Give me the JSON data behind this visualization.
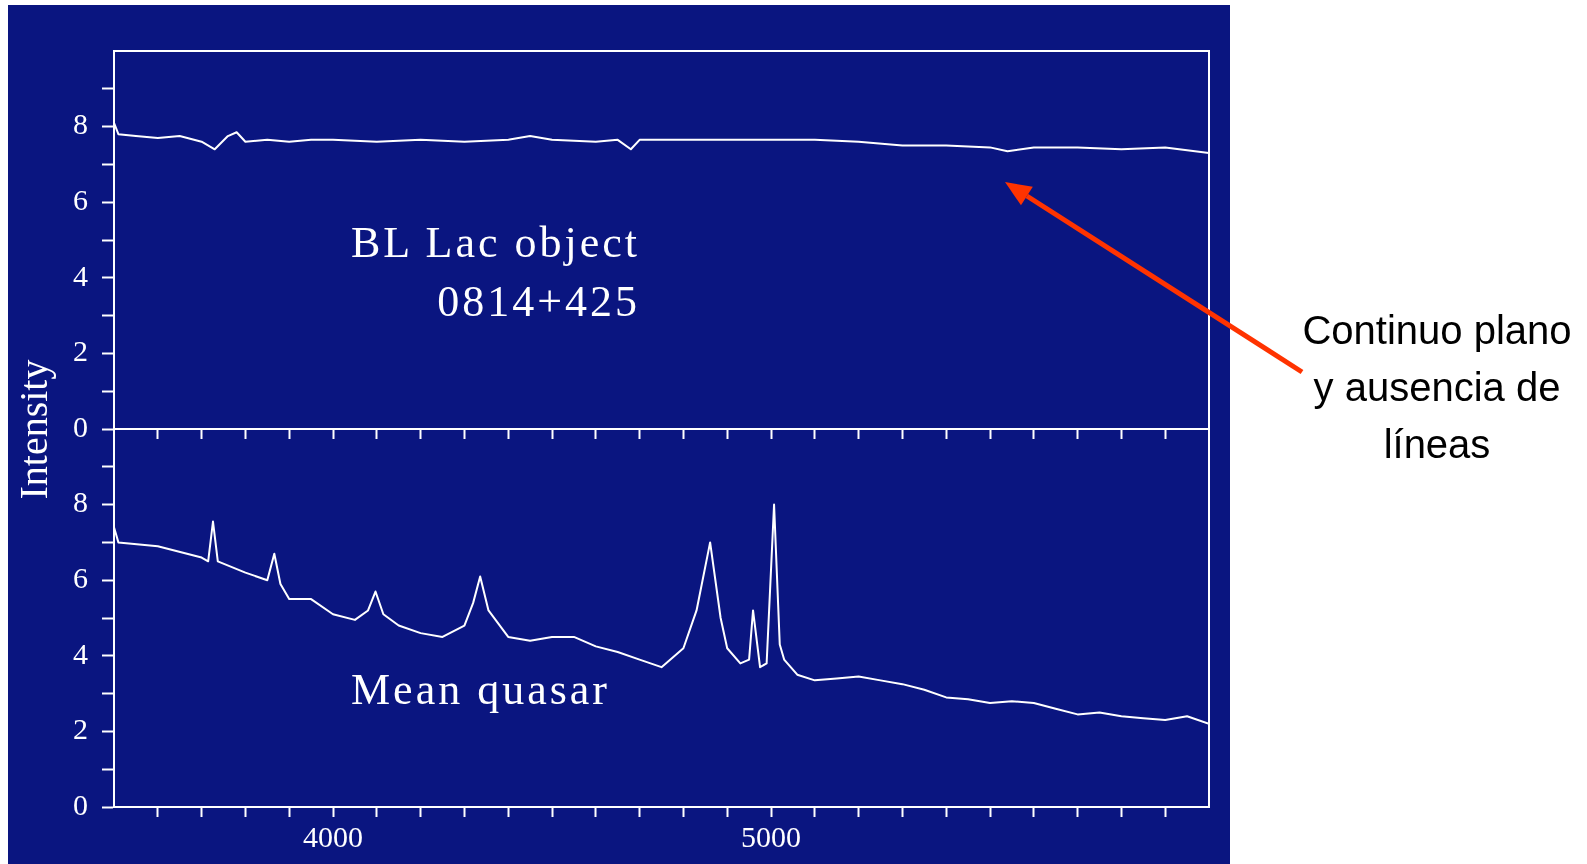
{
  "chart_data": [
    {
      "type": "line",
      "ylabel": "Intensity",
      "xlim": [
        3500,
        6000
      ],
      "ylim": [
        0,
        10
      ],
      "xticks": [
        {
          "value": 3600,
          "label": null
        },
        {
          "value": 3700,
          "label": null
        },
        {
          "value": 3800,
          "label": null
        },
        {
          "value": 3900,
          "label": null
        },
        {
          "value": 4000,
          "label": null
        },
        {
          "value": 4100,
          "label": null
        },
        {
          "value": 4200,
          "label": null
        },
        {
          "value": 4300,
          "label": null
        },
        {
          "value": 4400,
          "label": null
        },
        {
          "value": 4500,
          "label": null
        },
        {
          "value": 4600,
          "label": null
        },
        {
          "value": 4700,
          "label": null
        },
        {
          "value": 4800,
          "label": null
        },
        {
          "value": 4900,
          "label": null
        },
        {
          "value": 5000,
          "label": null
        },
        {
          "value": 5100,
          "label": null
        },
        {
          "value": 5200,
          "label": null
        },
        {
          "value": 5300,
          "label": null
        },
        {
          "value": 5400,
          "label": null
        },
        {
          "value": 5500,
          "label": null
        },
        {
          "value": 5600,
          "label": null
        },
        {
          "value": 5700,
          "label": null
        },
        {
          "value": 5800,
          "label": null
        },
        {
          "value": 5900,
          "label": null
        }
      ],
      "yticks": [
        0,
        {
          "value": 1,
          "label": null
        },
        2,
        {
          "value": 3,
          "label": null
        },
        4,
        {
          "value": 5,
          "label": null
        },
        6,
        {
          "value": 7,
          "label": null
        },
        8,
        {
          "value": 9,
          "label": null
        }
      ],
      "tick_labels": "y",
      "grid": false,
      "legend": false,
      "series": [
        {
          "name": "BL Lac object 0814+425",
          "color": "#ffffff",
          "x": [
            3500,
            3510,
            3550,
            3600,
            3650,
            3700,
            3730,
            3760,
            3780,
            3800,
            3850,
            3900,
            3950,
            4000,
            4100,
            4200,
            4300,
            4400,
            4450,
            4500,
            4600,
            4650,
            4680,
            4700,
            4800,
            5000,
            5100,
            5200,
            5300,
            5400,
            5500,
            5540,
            5600,
            5700,
            5800,
            5900,
            6000
          ],
          "values": [
            8.1,
            7.8,
            7.75,
            7.7,
            7.75,
            7.6,
            7.4,
            7.75,
            7.85,
            7.6,
            7.65,
            7.6,
            7.65,
            7.65,
            7.6,
            7.65,
            7.6,
            7.65,
            7.75,
            7.65,
            7.6,
            7.65,
            7.4,
            7.65,
            7.65,
            7.65,
            7.65,
            7.6,
            7.5,
            7.5,
            7.45,
            7.35,
            7.45,
            7.45,
            7.4,
            7.45,
            7.3
          ]
        }
      ],
      "annotations": [
        "Continuo plano y ausencia de líneas"
      ]
    },
    {
      "type": "line",
      "xlim": [
        3500,
        6000
      ],
      "ylim": [
        0,
        10
      ],
      "xticks": [
        {
          "value": 3600,
          "label": null
        },
        {
          "value": 3700,
          "label": null
        },
        {
          "value": 3800,
          "label": null
        },
        {
          "value": 3900,
          "label": null
        },
        {
          "value": 4000,
          "label": "4000"
        },
        {
          "value": 4100,
          "label": null
        },
        {
          "value": 4200,
          "label": null
        },
        {
          "value": 4300,
          "label": null
        },
        {
          "value": 4400,
          "label": null
        },
        {
          "value": 4500,
          "label": null
        },
        {
          "value": 4600,
          "label": null
        },
        {
          "value": 4700,
          "label": null
        },
        {
          "value": 4800,
          "label": null
        },
        {
          "value": 4900,
          "label": null
        },
        {
          "value": 5000,
          "label": "5000"
        },
        {
          "value": 5100,
          "label": null
        },
        {
          "value": 5200,
          "label": null
        },
        {
          "value": 5300,
          "label": null
        },
        {
          "value": 5400,
          "label": null
        },
        {
          "value": 5500,
          "label": null
        },
        {
          "value": 5600,
          "label": null
        },
        {
          "value": 5700,
          "label": null
        },
        {
          "value": 5800,
          "label": null
        },
        {
          "value": 5900,
          "label": null
        }
      ],
      "yticks": [
        0,
        {
          "value": 1,
          "label": null
        },
        2,
        {
          "value": 3,
          "label": null
        },
        4,
        {
          "value": 5,
          "label": null
        },
        6,
        {
          "value": 7,
          "label": null
        },
        8,
        {
          "value": 9,
          "label": null
        }
      ],
      "grid": false,
      "legend": false,
      "series": [
        {
          "name": "Mean quasar",
          "color": "#ffffff",
          "x": [
            3500,
            3510,
            3600,
            3700,
            3715,
            3726,
            3737,
            3800,
            3850,
            3866,
            3880,
            3900,
            3950,
            4000,
            4050,
            4080,
            4097,
            4115,
            4150,
            4200,
            4250,
            4300,
            4320,
            4336,
            4355,
            4400,
            4450,
            4500,
            4550,
            4600,
            4650,
            4700,
            4750,
            4800,
            4830,
            4861,
            4885,
            4900,
            4930,
            4950,
            4959,
            4975,
            4990,
            5007,
            5020,
            5030,
            5060,
            5100,
            5150,
            5200,
            5250,
            5300,
            5350,
            5400,
            5450,
            5500,
            5550,
            5600,
            5650,
            5700,
            5750,
            5800,
            5850,
            5900,
            5950,
            6000
          ],
          "values": [
            7.4,
            7.0,
            6.9,
            6.6,
            6.5,
            7.55,
            6.5,
            6.2,
            6.0,
            6.7,
            5.9,
            5.5,
            5.5,
            5.1,
            4.95,
            5.2,
            5.7,
            5.1,
            4.8,
            4.6,
            4.5,
            4.8,
            5.4,
            6.1,
            5.2,
            4.5,
            4.4,
            4.5,
            4.5,
            4.25,
            4.1,
            3.9,
            3.7,
            4.2,
            5.2,
            7.0,
            5.0,
            4.2,
            3.8,
            3.9,
            5.2,
            3.7,
            3.8,
            8.0,
            4.3,
            3.9,
            3.5,
            3.35,
            3.4,
            3.45,
            3.35,
            3.25,
            3.1,
            2.9,
            2.85,
            2.75,
            2.8,
            2.75,
            2.6,
            2.45,
            2.5,
            2.4,
            2.35,
            2.3,
            2.4,
            2.2
          ]
        }
      ]
    }
  ]
}
